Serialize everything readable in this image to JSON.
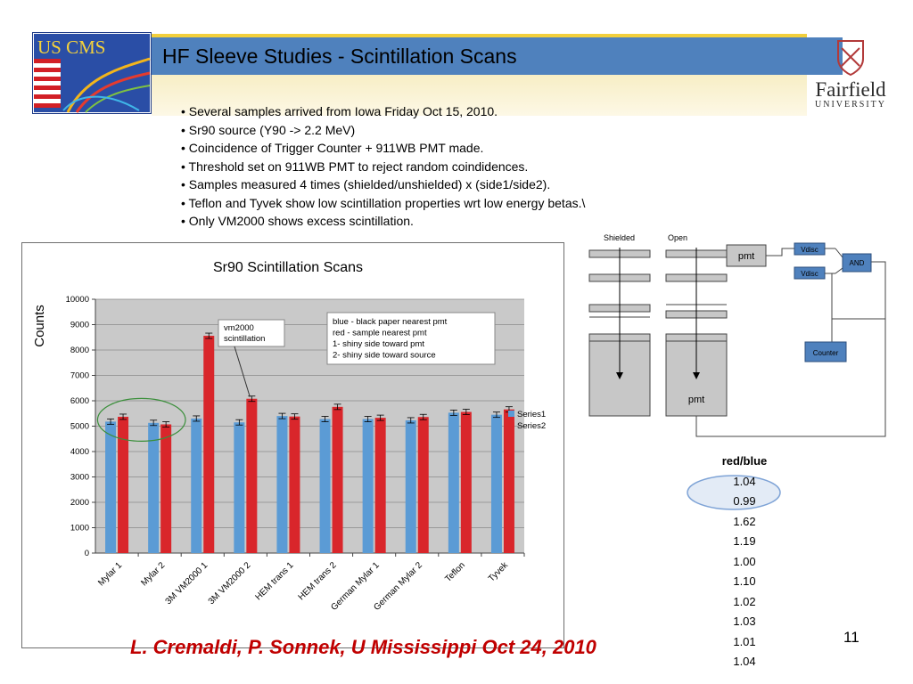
{
  "header": {
    "title": "HF Sleeve Studies  - Scintillation Scans",
    "logo_left": "US CMS",
    "logo_right_name": "Fairfield",
    "logo_right_sub": "UNIVERSITY"
  },
  "bullets": [
    "• Several  samples arrived from Iowa Friday Oct 15,  2010.",
    "• Sr90 source  (Y90 -> 2.2 MeV)",
    "• Coincidence of Trigger Counter + 911WB PMT made.",
    "• Threshold set on 911WB PMT to reject random coindidences.",
    "• Samples measured 4 times (shielded/unshielded) x (side1/side2).",
    "• Teflon and Tyvek show low scintillation properties wrt low energy betas.\\",
    "• Only VM2000 shows excess scintillation."
  ],
  "chart_data": {
    "type": "bar",
    "title": "Sr90 Scintillation Scans",
    "ylabel": "Counts",
    "xlabel": "",
    "ylim": [
      0,
      10000
    ],
    "yticks": [
      "0",
      "1000",
      "2000",
      "3000",
      "4000",
      "5000",
      "6000",
      "7000",
      "8000",
      "9000",
      "10000"
    ],
    "grid": true,
    "legend_position": "right",
    "categories": [
      "Mylar 1",
      "Mylar 2",
      "3M VM2000 1",
      "3M VM2000 2",
      "HEM trans 1",
      "HEM trans 2",
      "German Mylar 1",
      "German Mylar 2",
      "Teflon",
      "Tyvek"
    ],
    "series": [
      {
        "name": "Series1",
        "color": "#5b9bd5",
        "values": [
          5180,
          5130,
          5300,
          5150,
          5400,
          5280,
          5280,
          5230,
          5530,
          5450
        ]
      },
      {
        "name": "Series2",
        "color": "#d9262b",
        "values": [
          5370,
          5070,
          8560,
          6080,
          5380,
          5760,
          5330,
          5360,
          5560,
          5660
        ]
      }
    ],
    "annotations": {
      "callout": [
        "vm2000",
        "scintillation"
      ],
      "legend_note": [
        "blue - black paper nearest pmt",
        "red -  sample nearest pmt",
        "1- shiny side toward pmt",
        "2- shiny side toward source"
      ]
    }
  },
  "diagram": {
    "shielded": "Shielded",
    "open": "Open",
    "pmt_top": "pmt",
    "pmt_bottom": "pmt",
    "vdisc1": "Vdisc",
    "vdisc2": "Vdisc",
    "and": "AND",
    "counter": "Counter"
  },
  "ratio": {
    "header": "red/blue",
    "values": [
      "1.04",
      "0.99",
      "1.62",
      "1.19",
      "1.00",
      "1.10",
      "1.02",
      "1.03",
      "1.01",
      "1.04"
    ]
  },
  "footer": {
    "authors": "L. Cremaldi, P. Sonnek, U Mississippi  Oct 24, 2010",
    "slide_number": "11"
  }
}
